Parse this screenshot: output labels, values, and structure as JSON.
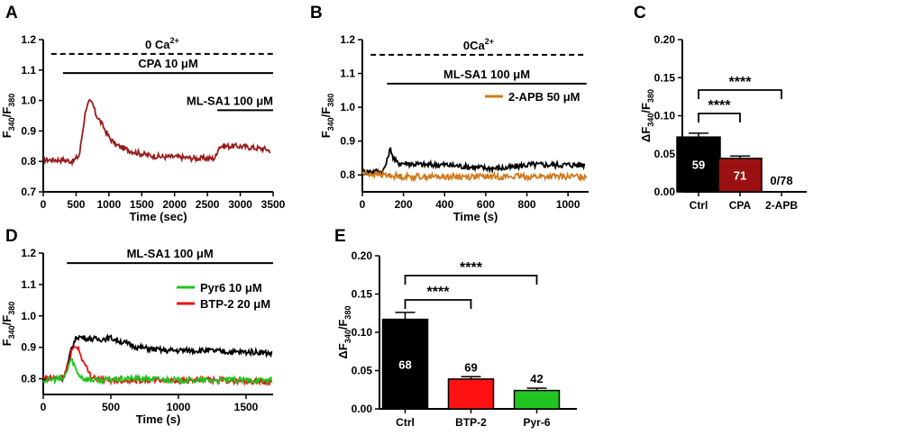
{
  "chart_data": [
    {
      "panel": "A",
      "type": "line",
      "xlabel": "Time (sec)",
      "ylabel": "F340/F380",
      "xlim": [
        0,
        3500
      ],
      "ylim": [
        0.7,
        1.2
      ],
      "xticks": [
        0,
        500,
        1000,
        1500,
        2000,
        2500,
        3000,
        3500
      ],
      "xtick_labels": [
        "0",
        "500",
        "1000",
        "1500",
        "2000",
        "2500",
        "3000",
        "3500"
      ],
      "yticks": [
        0.7,
        0.8,
        0.9,
        1.0,
        1.1,
        1.2
      ],
      "ytick_labels": [
        "0.7",
        "0.8",
        "0.9",
        "1.0",
        "1.1",
        "1.2"
      ],
      "annotations": [
        {
          "label": "0 Ca2+",
          "style": "dashed",
          "x_start": 120,
          "x_end": 3500,
          "y": 1.153
        },
        {
          "label": "CPA 10 μM",
          "style": "solid",
          "x_start": 300,
          "x_end": 3500,
          "y": 1.09
        },
        {
          "label": "ML-SA1 100 μM",
          "style": "solid",
          "x_start": 2650,
          "x_end": 3500,
          "y": 0.968
        }
      ],
      "series": [
        {
          "name": "trace",
          "color": "#9b1b1b",
          "x": [
            0,
            300,
            450,
            550,
            600,
            650,
            700,
            750,
            800,
            900,
            1000,
            1100,
            1200,
            1400,
            1600,
            1800,
            2000,
            2300,
            2600,
            2640,
            2660,
            2700,
            2800,
            3000,
            3200,
            3400,
            3450
          ],
          "values": [
            0.805,
            0.805,
            0.8,
            0.82,
            0.9,
            0.975,
            0.995,
            0.99,
            0.955,
            0.92,
            0.88,
            0.855,
            0.845,
            0.83,
            0.82,
            0.815,
            0.815,
            0.81,
            0.81,
            0.82,
            0.845,
            0.85,
            0.85,
            0.85,
            0.845,
            0.84,
            0.835
          ]
        }
      ]
    },
    {
      "panel": "B",
      "type": "line",
      "xlabel": "Time (s)",
      "ylabel": "F340/F380",
      "xlim": [
        0,
        1100
      ],
      "ylim": [
        0.75,
        1.2
      ],
      "xticks": [
        0,
        200,
        400,
        600,
        800,
        1000
      ],
      "xtick_labels": [
        "0",
        "200",
        "400",
        "600",
        "800",
        "1000"
      ],
      "yticks": [
        0.8,
        0.9,
        1.0,
        1.1,
        1.2
      ],
      "ytick_labels": [
        "0.8",
        "0.9",
        "1.0",
        "1.1",
        "1.2"
      ],
      "annotations": [
        {
          "label": "0Ca2+",
          "style": "dashed",
          "x_start": 40,
          "x_end": 1090,
          "y": 1.155
        },
        {
          "label": "ML-SA1 100 μM",
          "style": "solid",
          "x_start": 120,
          "x_end": 1090,
          "y": 1.07
        }
      ],
      "legend": [
        {
          "label": "2-APB 50 μM",
          "color": "#d07a1e"
        }
      ],
      "series": [
        {
          "name": "Control",
          "color": "#000000",
          "x": [
            0,
            100,
            120,
            130,
            140,
            150,
            170,
            200,
            300,
            400,
            500,
            600,
            700,
            800,
            900,
            1000,
            1080
          ],
          "values": [
            0.81,
            0.81,
            0.84,
            0.87,
            0.875,
            0.85,
            0.835,
            0.835,
            0.83,
            0.83,
            0.825,
            0.82,
            0.82,
            0.83,
            0.83,
            0.83,
            0.83
          ]
        },
        {
          "name": "2-APB 50 μM",
          "color": "#d07a1e",
          "x": [
            0,
            100,
            200,
            400,
            600,
            800,
            1000,
            1090
          ],
          "values": [
            0.805,
            0.8,
            0.795,
            0.795,
            0.795,
            0.795,
            0.795,
            0.795
          ]
        }
      ]
    },
    {
      "panel": "C",
      "type": "bar",
      "ylabel": "ΔF340/F380",
      "ylim": [
        0,
        0.2
      ],
      "yticks": [
        0.0,
        0.05,
        0.1,
        0.15,
        0.2
      ],
      "ytick_labels": [
        "0.00",
        "0.05",
        "0.10",
        "0.15",
        "0.20"
      ],
      "categories": [
        "Ctrl",
        "CPA",
        "2-APB"
      ],
      "values": [
        0.072,
        0.044,
        0.0
      ],
      "errors": [
        0.005,
        0.003,
        0.0
      ],
      "n_labels": [
        "59",
        "71",
        "0/78"
      ],
      "colors": [
        "#000000",
        "#9b1010",
        "#ffffff"
      ],
      "significance": [
        {
          "from": 0,
          "to": 1,
          "label": "****"
        },
        {
          "from": 0,
          "to": 2,
          "label": "****"
        }
      ]
    },
    {
      "panel": "D",
      "type": "line",
      "xlabel": "Time (s)",
      "ylabel": "F340/F380",
      "xlim": [
        0,
        1700
      ],
      "ylim": [
        0.75,
        1.2
      ],
      "xticks": [
        0,
        500,
        1000,
        1500
      ],
      "xtick_labels": [
        "0",
        "500",
        "1000",
        "1500"
      ],
      "yticks": [
        0.8,
        0.9,
        1.0,
        1.1,
        1.2
      ],
      "ytick_labels": [
        "0.8",
        "0.9",
        "1.0",
        "1.1",
        "1.2"
      ],
      "annotations": [
        {
          "label": "ML-SA1 100 μM",
          "style": "solid",
          "x_start": 175,
          "x_end": 1700,
          "y": 1.168
        }
      ],
      "legend": [
        {
          "label": "Pyr6 10 μM",
          "color": "#1ec41e"
        },
        {
          "label": "BTP-2 20 μM",
          "color": "#ee1111"
        }
      ],
      "series": [
        {
          "name": "Control",
          "color": "#000000",
          "x": [
            0,
            150,
            180,
            210,
            250,
            300,
            400,
            500,
            600,
            700,
            800,
            900,
            1000,
            1200,
            1400,
            1600,
            1690
          ],
          "values": [
            0.8,
            0.805,
            0.84,
            0.9,
            0.935,
            0.93,
            0.925,
            0.93,
            0.915,
            0.9,
            0.895,
            0.89,
            0.89,
            0.89,
            0.885,
            0.885,
            0.88
          ]
        },
        {
          "name": "BTP-2 20 μM",
          "color": "#ee1111",
          "x": [
            0,
            150,
            180,
            210,
            240,
            260,
            300,
            350,
            400,
            500,
            700,
            1000,
            1300,
            1690
          ],
          "values": [
            0.8,
            0.805,
            0.84,
            0.89,
            0.905,
            0.895,
            0.85,
            0.81,
            0.8,
            0.795,
            0.795,
            0.795,
            0.795,
            0.79
          ]
        },
        {
          "name": "Pyr6 10 μM",
          "color": "#1ec41e",
          "x": [
            0,
            150,
            180,
            200,
            220,
            250,
            300,
            400,
            600,
            800,
            1000,
            1300,
            1690
          ],
          "values": [
            0.795,
            0.8,
            0.83,
            0.86,
            0.855,
            0.82,
            0.8,
            0.795,
            0.8,
            0.8,
            0.795,
            0.795,
            0.795
          ]
        }
      ]
    },
    {
      "panel": "E",
      "type": "bar",
      "ylabel": "ΔF340/F380",
      "ylim": [
        0,
        0.2
      ],
      "yticks": [
        0.0,
        0.05,
        0.1,
        0.15,
        0.2
      ],
      "ytick_labels": [
        "0.00",
        "0.05",
        "0.10",
        "0.15",
        "0.20"
      ],
      "categories": [
        "Ctrl",
        "BTP-2",
        "Pyr-6"
      ],
      "values": [
        0.117,
        0.039,
        0.024
      ],
      "errors": [
        0.009,
        0.003,
        0.003
      ],
      "n_labels": [
        "68",
        "69",
        "42"
      ],
      "colors": [
        "#000000",
        "#ff1111",
        "#22c422"
      ],
      "significance": [
        {
          "from": 0,
          "to": 1,
          "label": "****"
        },
        {
          "from": 0,
          "to": 2,
          "label": "****"
        }
      ]
    }
  ]
}
